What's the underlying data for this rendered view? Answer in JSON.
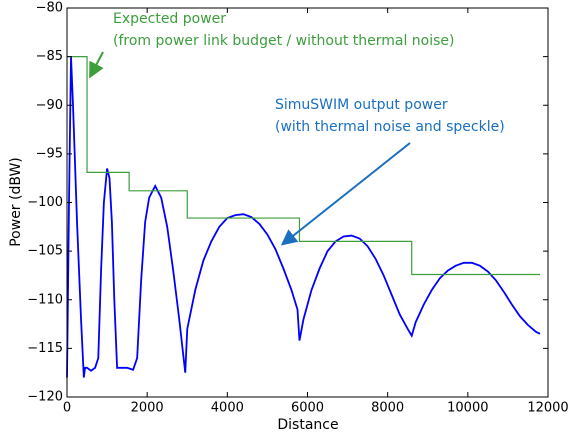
{
  "chart_data": {
    "type": "line",
    "xlabel": "Distance",
    "ylabel": "Power (dBW)",
    "annotations": [
      "Expected power",
      "(from power link budget / without thermal noise)",
      "SimuSWIM output power",
      "(with thermal noise and speckle)"
    ],
    "xlim": [
      0,
      12000
    ],
    "ylim": [
      -120,
      -80
    ],
    "xticks": [
      0,
      2000,
      4000,
      6000,
      8000,
      10000,
      12000
    ],
    "yticks": [
      {
        "value": -120,
        "label": "−120"
      },
      {
        "value": -115,
        "label": "−115"
      },
      {
        "value": -110,
        "label": "−110"
      },
      {
        "value": -105,
        "label": "−105"
      },
      {
        "value": -100,
        "label": "−100"
      },
      {
        "value": -95,
        "label": "−95"
      },
      {
        "value": -90,
        "label": "−90"
      },
      {
        "value": -85,
        "label": "−85"
      },
      {
        "value": -80,
        "label": "−80"
      }
    ],
    "series": [
      {
        "color": "#0000ff",
        "x": [
          0,
          50,
          100,
          150,
          200,
          250,
          300,
          350,
          420,
          450,
          500,
          600,
          700,
          780,
          850,
          920,
          1000,
          1060,
          1120,
          1180,
          1250,
          1350,
          1500,
          1650,
          1750,
          1850,
          1950,
          2050,
          2200,
          2350,
          2500,
          2650,
          2800,
          2950,
          3000,
          3200,
          3400,
          3600,
          3800,
          4000,
          4200,
          4400,
          4600,
          4800,
          5000,
          5200,
          5400,
          5600,
          5750,
          5800,
          5900,
          6100,
          6300,
          6500,
          6700,
          6900,
          7100,
          7300,
          7500,
          7700,
          7900,
          8100,
          8300,
          8500,
          8600,
          8700,
          8900,
          9100,
          9300,
          9500,
          9700,
          9900,
          10100,
          10300,
          10500,
          10700,
          10900,
          11100,
          11300,
          11500,
          11700,
          11800
        ],
        "values": [
          -118,
          -100,
          -85,
          -90,
          -96,
          -102,
          -107,
          -112,
          -118,
          -117,
          -117,
          -117.3,
          -117,
          -116,
          -107,
          -100,
          -96.5,
          -97.5,
          -102,
          -110,
          -117,
          -117,
          -117,
          -117.2,
          -116,
          -108,
          -102,
          -99.5,
          -98.3,
          -99.5,
          -102.5,
          -107,
          -112,
          -117.5,
          -113,
          -109,
          -106,
          -104,
          -102.5,
          -101.6,
          -101.3,
          -101.2,
          -101.5,
          -102.2,
          -103.3,
          -104.8,
          -106.8,
          -109,
          -111,
          -114.2,
          -112,
          -109,
          -106.8,
          -105,
          -104,
          -103.5,
          -103.4,
          -103.7,
          -104.5,
          -105.8,
          -107.5,
          -109.5,
          -111.5,
          -113,
          -113.7,
          -112.3,
          -110.5,
          -109,
          -107.8,
          -107,
          -106.5,
          -106.2,
          -106.2,
          -106.5,
          -107.1,
          -108,
          -109.2,
          -110.5,
          -111.7,
          -112.6,
          -113.3,
          -113.5
        ]
      },
      {
        "color": "#3c9e3c",
        "x": [
          0,
          500,
          500,
          1550,
          1550,
          3000,
          3000,
          5800,
          5800,
          8600,
          8600,
          11800
        ],
        "values": [
          -85,
          -85,
          -96.9,
          -96.9,
          -98.8,
          -98.8,
          -101.6,
          -101.6,
          -104,
          -104,
          -107.4,
          -107.4
        ]
      }
    ]
  }
}
